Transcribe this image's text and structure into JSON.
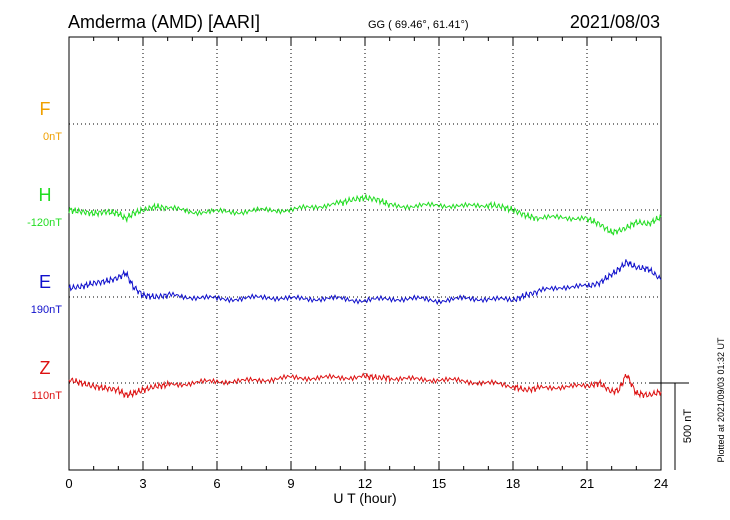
{
  "header": {
    "station": "Amderma (AMD)  [AARI]",
    "coords": "GG ( 69.46°,  61.41°)",
    "date": "2021/08/03"
  },
  "footer": {
    "plotted": "Plotted at 2021/09/03 01:32 UT"
  },
  "chart_data": {
    "type": "line",
    "xlabel": "U T (hour)",
    "xlim": [
      0,
      24
    ],
    "xticks": [
      "0",
      "3",
      "6",
      "9",
      "12",
      "15",
      "18",
      "21",
      "24"
    ],
    "scale_bar": "500 nT",
    "grid": true,
    "series": [
      {
        "name": "F",
        "offset_label": "0nT",
        "color": "#f0a000",
        "x": [],
        "y": []
      },
      {
        "name": "H",
        "offset_label": "-120nT",
        "color": "#22dd22",
        "x": [
          0,
          0.5,
          1,
          1.5,
          2,
          2.3,
          2.6,
          3,
          3.5,
          4,
          5,
          6,
          7,
          8,
          9,
          10,
          11,
          11.5,
          12,
          12.5,
          13,
          14,
          15,
          16,
          17,
          17.5,
          18,
          18.5,
          19,
          20,
          21,
          21.5,
          22,
          22.5,
          23,
          23.5,
          24
        ],
        "y": [
          0,
          -10,
          -20,
          -10,
          -20,
          -50,
          -20,
          0,
          20,
          10,
          -10,
          -10,
          -10,
          0,
          0,
          20,
          40,
          60,
          70,
          60,
          30,
          20,
          30,
          20,
          30,
          20,
          0,
          -30,
          -50,
          -40,
          -50,
          -80,
          -130,
          -110,
          -70,
          -80,
          -40
        ]
      },
      {
        "name": "E",
        "offset_label": "190nT",
        "color": "#1010cc",
        "x": [
          0,
          0.5,
          1,
          1.5,
          2,
          2.3,
          2.6,
          3,
          3.5,
          4,
          5,
          6,
          7,
          8,
          9,
          10,
          11,
          12,
          13,
          14,
          15,
          16,
          17,
          18,
          18.5,
          19,
          20,
          21,
          21.5,
          22,
          22.3,
          22.6,
          23,
          23.5,
          24
        ],
        "y": [
          50,
          60,
          80,
          90,
          110,
          140,
          60,
          10,
          0,
          10,
          0,
          -10,
          -10,
          0,
          -10,
          -10,
          -10,
          -20,
          -10,
          -10,
          -20,
          -10,
          -10,
          -20,
          10,
          30,
          60,
          60,
          80,
          130,
          160,
          200,
          170,
          160,
          100
        ]
      },
      {
        "name": "Z",
        "offset_label": "110nT",
        "color": "#dd1111",
        "x": [
          0,
          0.5,
          1,
          1.5,
          2,
          2.3,
          2.6,
          3,
          3.5,
          4,
          5,
          6,
          7,
          8,
          9,
          10,
          11,
          12,
          12.5,
          13,
          14,
          15,
          16,
          17,
          18,
          18.5,
          19,
          20,
          21,
          21.5,
          22,
          22.3,
          22.6,
          23,
          23.5,
          24
        ],
        "y": [
          20,
          0,
          -20,
          -30,
          -40,
          -70,
          -60,
          -40,
          -20,
          -10,
          0,
          10,
          10,
          20,
          30,
          30,
          30,
          40,
          30,
          30,
          20,
          20,
          10,
          0,
          -20,
          -40,
          -30,
          -20,
          -20,
          0,
          -50,
          -40,
          50,
          -60,
          -70,
          -50
        ]
      }
    ]
  }
}
